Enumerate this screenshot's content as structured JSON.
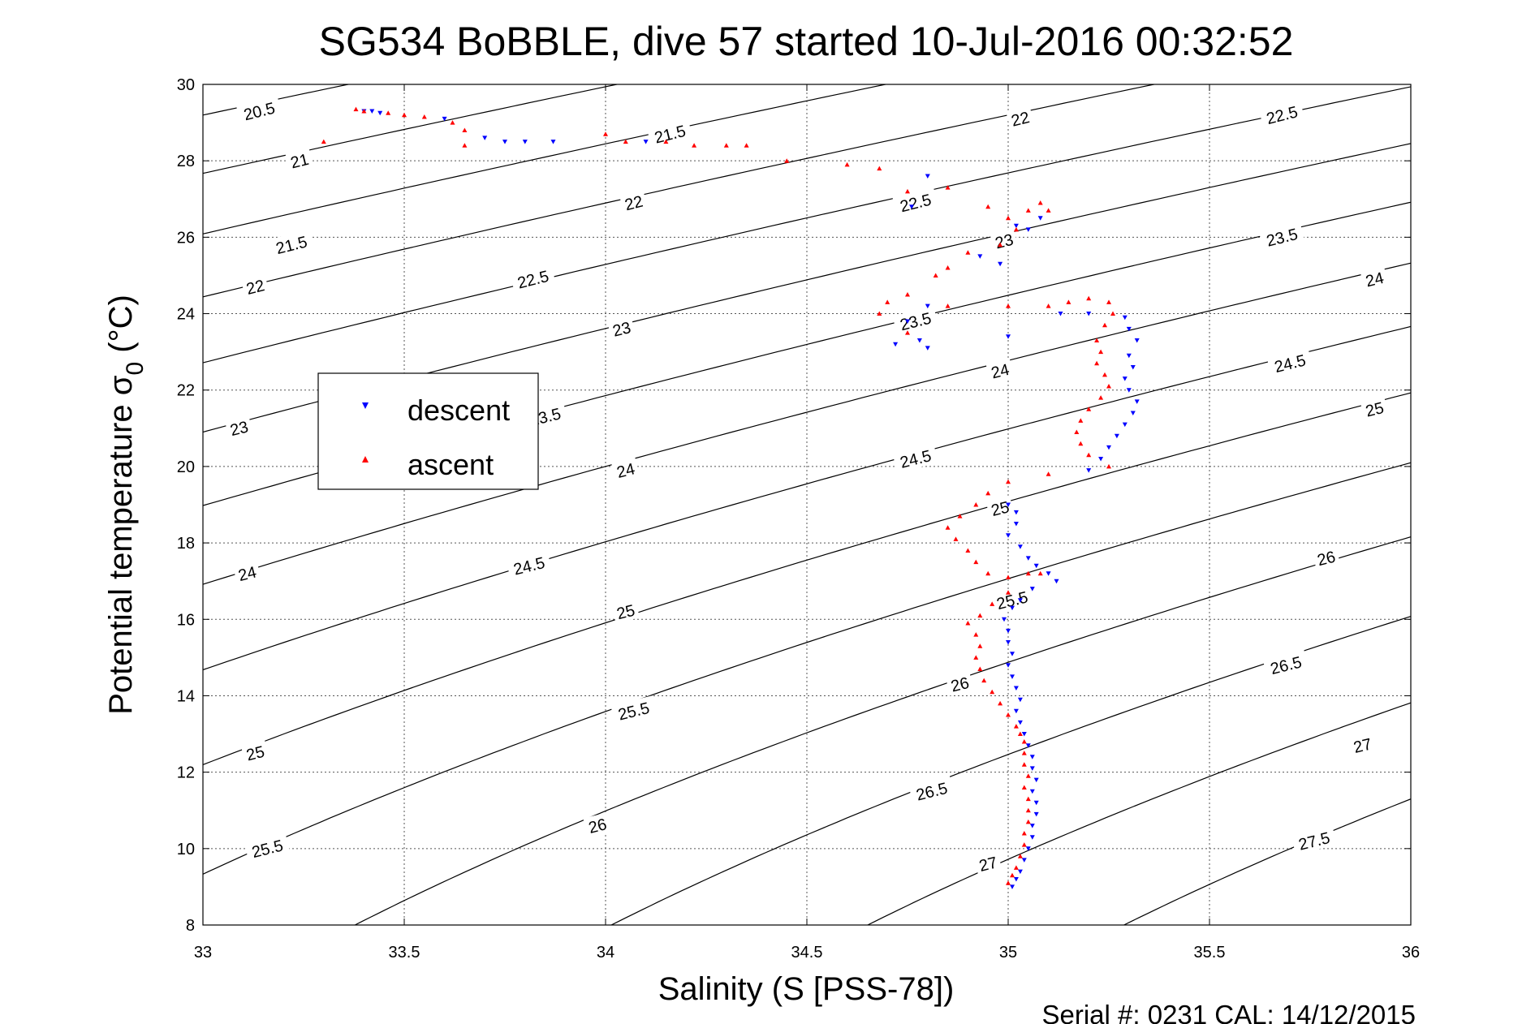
{
  "chart_data": {
    "type": "scatter",
    "title": "SG534 BoBBLE, dive 57 started 10-Jul-2016 00:32:52",
    "xlabel": "Salinity (S [PSS-78])",
    "ylabel_main": "Potential temperature σ",
    "ylabel_sub": "0",
    "ylabel_unit": "(°C)",
    "xlim": [
      33,
      36
    ],
    "ylim": [
      8,
      30
    ],
    "xticks": [
      "33",
      "33.5",
      "34",
      "34.5",
      "35",
      "35.5",
      "36"
    ],
    "yticks": [
      "8",
      "10",
      "12",
      "14",
      "16",
      "18",
      "20",
      "22",
      "24",
      "26",
      "28",
      "30"
    ],
    "grid": true,
    "legend_placement": "left-center",
    "footer": "Serial #: 0231  CAL: 14/12/2015",
    "density_contours": {
      "levels": [
        20.5,
        21,
        21.5,
        22,
        22.5,
        23,
        23.5,
        24,
        24.5,
        25,
        25.5,
        26,
        26.5,
        27,
        27.5
      ],
      "labels": [
        {
          "text": "20.5",
          "x": 33.14,
          "y": 29.3
        },
        {
          "text": "21",
          "x": 33.24,
          "y": 28.0
        },
        {
          "text": "21.5",
          "x": 33.22,
          "y": 25.8
        },
        {
          "text": "22",
          "x": 33.13,
          "y": 24.7
        },
        {
          "text": "23",
          "x": 33.09,
          "y": 21.0
        },
        {
          "text": "24",
          "x": 33.11,
          "y": 17.2
        },
        {
          "text": "25",
          "x": 33.13,
          "y": 12.5
        },
        {
          "text": "25.5",
          "x": 33.16,
          "y": 10.0
        },
        {
          "text": "21.5",
          "x": 34.16,
          "y": 28.7
        },
        {
          "text": "22",
          "x": 34.07,
          "y": 26.9
        },
        {
          "text": "22.5",
          "x": 33.82,
          "y": 24.9
        },
        {
          "text": "23",
          "x": 34.04,
          "y": 23.6
        },
        {
          "text": "23.5",
          "x": 33.85,
          "y": 21.3
        },
        {
          "text": "24",
          "x": 34.05,
          "y": 19.9
        },
        {
          "text": "24.5",
          "x": 33.81,
          "y": 17.4
        },
        {
          "text": "25",
          "x": 34.05,
          "y": 16.2
        },
        {
          "text": "25.5",
          "x": 34.07,
          "y": 13.6
        },
        {
          "text": "26",
          "x": 33.98,
          "y": 10.6
        },
        {
          "text": "22",
          "x": 35.03,
          "y": 29.1
        },
        {
          "text": "22.5",
          "x": 34.77,
          "y": 26.9
        },
        {
          "text": "23",
          "x": 34.99,
          "y": 25.9
        },
        {
          "text": "23.5",
          "x": 34.77,
          "y": 23.8
        },
        {
          "text": "24",
          "x": 34.98,
          "y": 22.5
        },
        {
          "text": "24.5",
          "x": 34.77,
          "y": 20.2
        },
        {
          "text": "25",
          "x": 34.98,
          "y": 18.9
        },
        {
          "text": "25.5",
          "x": 35.01,
          "y": 16.5
        },
        {
          "text": "26",
          "x": 34.88,
          "y": 14.3
        },
        {
          "text": "26.5",
          "x": 34.81,
          "y": 11.5
        },
        {
          "text": "27",
          "x": 34.95,
          "y": 9.6
        },
        {
          "text": "22.5",
          "x": 35.68,
          "y": 29.2
        },
        {
          "text": "23.5",
          "x": 35.68,
          "y": 26.0
        },
        {
          "text": "24",
          "x": 35.91,
          "y": 24.9
        },
        {
          "text": "24.5",
          "x": 35.7,
          "y": 22.7
        },
        {
          "text": "25",
          "x": 35.91,
          "y": 21.5
        },
        {
          "text": "26",
          "x": 35.79,
          "y": 17.6
        },
        {
          "text": "26.5",
          "x": 35.69,
          "y": 14.8
        },
        {
          "text": "27",
          "x": 35.88,
          "y": 12.7
        },
        {
          "text": "27.5",
          "x": 35.76,
          "y": 10.2
        }
      ]
    },
    "legend": [
      {
        "label": "descent",
        "color": "#0000ff",
        "marker": "triangle-down"
      },
      {
        "label": "ascent",
        "color": "#ff0000",
        "marker": "triangle-up"
      }
    ],
    "series": [
      {
        "name": "descent",
        "color": "#0000ff",
        "marker": "triangle-down",
        "points": [
          [
            33.4,
            29.3
          ],
          [
            33.42,
            29.3
          ],
          [
            33.44,
            29.25
          ],
          [
            33.6,
            29.1
          ],
          [
            33.7,
            28.6
          ],
          [
            33.75,
            28.5
          ],
          [
            33.8,
            28.5
          ],
          [
            33.87,
            28.5
          ],
          [
            34.1,
            28.5
          ],
          [
            34.8,
            27.6
          ],
          [
            34.76,
            26.8
          ],
          [
            35.02,
            26.3
          ],
          [
            35.05,
            26.2
          ],
          [
            35.08,
            26.5
          ],
          [
            34.93,
            25.5
          ],
          [
            34.98,
            25.3
          ],
          [
            34.8,
            24.2
          ],
          [
            34.75,
            23.8
          ],
          [
            34.72,
            23.2
          ],
          [
            34.78,
            23.3
          ],
          [
            34.8,
            23.1
          ],
          [
            35.0,
            23.4
          ],
          [
            35.13,
            24.0
          ],
          [
            35.2,
            24.0
          ],
          [
            35.29,
            23.9
          ],
          [
            35.3,
            23.6
          ],
          [
            35.32,
            23.3
          ],
          [
            35.3,
            22.9
          ],
          [
            35.31,
            22.6
          ],
          [
            35.29,
            22.3
          ],
          [
            35.3,
            22.0
          ],
          [
            35.32,
            21.7
          ],
          [
            35.31,
            21.4
          ],
          [
            35.29,
            21.1
          ],
          [
            35.27,
            20.8
          ],
          [
            35.25,
            20.5
          ],
          [
            35.23,
            20.2
          ],
          [
            35.2,
            19.9
          ],
          [
            35.0,
            19.0
          ],
          [
            35.02,
            18.8
          ],
          [
            35.02,
            18.5
          ],
          [
            35.0,
            18.2
          ],
          [
            35.03,
            17.9
          ],
          [
            35.05,
            17.6
          ],
          [
            35.07,
            17.4
          ],
          [
            35.1,
            17.2
          ],
          [
            35.12,
            17.0
          ],
          [
            35.06,
            16.8
          ],
          [
            35.03,
            16.5
          ],
          [
            35.01,
            16.3
          ],
          [
            34.99,
            16.0
          ],
          [
            35.0,
            15.7
          ],
          [
            35.0,
            15.4
          ],
          [
            35.01,
            15.1
          ],
          [
            35.0,
            14.8
          ],
          [
            35.01,
            14.5
          ],
          [
            35.02,
            14.2
          ],
          [
            35.03,
            13.9
          ],
          [
            35.02,
            13.6
          ],
          [
            35.03,
            13.3
          ],
          [
            35.04,
            13.0
          ],
          [
            35.05,
            12.7
          ],
          [
            35.06,
            12.4
          ],
          [
            35.06,
            12.1
          ],
          [
            35.07,
            11.8
          ],
          [
            35.06,
            11.5
          ],
          [
            35.07,
            11.2
          ],
          [
            35.07,
            10.9
          ],
          [
            35.06,
            10.6
          ],
          [
            35.06,
            10.3
          ],
          [
            35.05,
            10.0
          ],
          [
            35.04,
            9.7
          ],
          [
            35.03,
            9.4
          ],
          [
            35.02,
            9.2
          ],
          [
            35.01,
            9.0
          ]
        ]
      },
      {
        "name": "ascent",
        "color": "#ff0000",
        "marker": "triangle-up",
        "points": [
          [
            33.38,
            29.35
          ],
          [
            33.4,
            29.3
          ],
          [
            33.46,
            29.25
          ],
          [
            33.5,
            29.2
          ],
          [
            33.55,
            29.15
          ],
          [
            33.62,
            29.0
          ],
          [
            33.65,
            28.8
          ],
          [
            33.3,
            28.5
          ],
          [
            33.65,
            28.4
          ],
          [
            34.0,
            28.7
          ],
          [
            34.05,
            28.5
          ],
          [
            34.15,
            28.5
          ],
          [
            34.22,
            28.4
          ],
          [
            34.3,
            28.4
          ],
          [
            34.35,
            28.4
          ],
          [
            34.45,
            28.0
          ],
          [
            34.6,
            27.9
          ],
          [
            34.68,
            27.8
          ],
          [
            34.75,
            27.2
          ],
          [
            34.85,
            27.3
          ],
          [
            34.95,
            26.8
          ],
          [
            35.0,
            26.5
          ],
          [
            35.05,
            26.7
          ],
          [
            35.08,
            26.9
          ],
          [
            35.1,
            26.7
          ],
          [
            35.02,
            26.2
          ],
          [
            34.98,
            25.8
          ],
          [
            34.9,
            25.6
          ],
          [
            34.85,
            25.2
          ],
          [
            34.82,
            25.0
          ],
          [
            34.75,
            24.5
          ],
          [
            34.7,
            24.3
          ],
          [
            34.68,
            24.0
          ],
          [
            34.75,
            23.5
          ],
          [
            34.85,
            24.2
          ],
          [
            35.0,
            24.2
          ],
          [
            35.1,
            24.2
          ],
          [
            35.15,
            24.3
          ],
          [
            35.2,
            24.4
          ],
          [
            35.25,
            24.3
          ],
          [
            35.26,
            24.0
          ],
          [
            35.24,
            23.7
          ],
          [
            35.22,
            23.3
          ],
          [
            35.23,
            23.0
          ],
          [
            35.22,
            22.7
          ],
          [
            35.24,
            22.4
          ],
          [
            35.25,
            22.1
          ],
          [
            35.23,
            21.8
          ],
          [
            35.2,
            21.5
          ],
          [
            35.18,
            21.2
          ],
          [
            35.17,
            20.9
          ],
          [
            35.18,
            20.6
          ],
          [
            35.2,
            20.3
          ],
          [
            35.25,
            20.0
          ],
          [
            35.1,
            19.8
          ],
          [
            35.0,
            19.6
          ],
          [
            34.95,
            19.3
          ],
          [
            34.92,
            19.0
          ],
          [
            34.88,
            18.7
          ],
          [
            34.85,
            18.4
          ],
          [
            34.87,
            18.1
          ],
          [
            34.9,
            17.8
          ],
          [
            34.92,
            17.5
          ],
          [
            34.95,
            17.2
          ],
          [
            35.0,
            17.1
          ],
          [
            35.05,
            17.2
          ],
          [
            35.08,
            17.2
          ],
          [
            35.0,
            16.7
          ],
          [
            34.96,
            16.4
          ],
          [
            34.93,
            16.1
          ],
          [
            34.9,
            15.9
          ],
          [
            34.92,
            15.6
          ],
          [
            34.93,
            15.3
          ],
          [
            34.92,
            15.0
          ],
          [
            34.93,
            14.7
          ],
          [
            34.94,
            14.4
          ],
          [
            34.96,
            14.1
          ],
          [
            34.98,
            13.8
          ],
          [
            35.0,
            13.5
          ],
          [
            35.02,
            13.2
          ],
          [
            35.03,
            13.0
          ],
          [
            35.04,
            12.8
          ],
          [
            35.04,
            12.5
          ],
          [
            35.04,
            12.2
          ],
          [
            35.05,
            11.9
          ],
          [
            35.04,
            11.6
          ],
          [
            35.05,
            11.3
          ],
          [
            35.05,
            11.0
          ],
          [
            35.05,
            10.7
          ],
          [
            35.04,
            10.4
          ],
          [
            35.04,
            10.1
          ],
          [
            35.03,
            9.8
          ],
          [
            35.02,
            9.5
          ],
          [
            35.01,
            9.3
          ],
          [
            35.0,
            9.1
          ]
        ]
      }
    ]
  }
}
